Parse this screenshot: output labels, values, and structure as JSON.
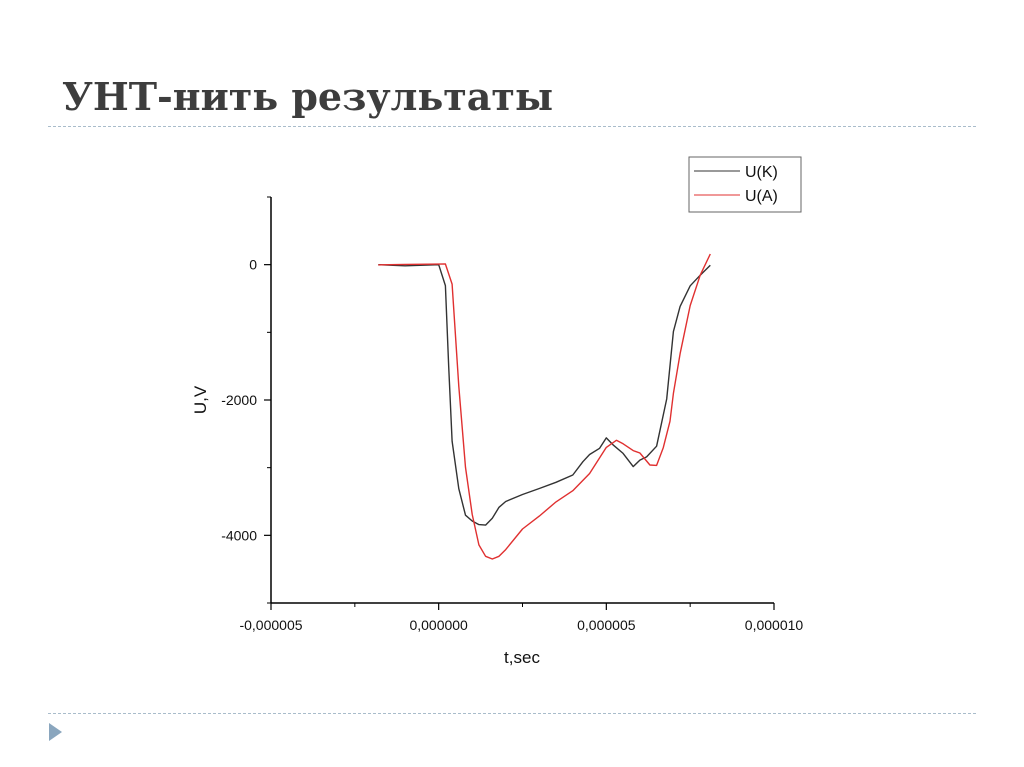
{
  "slide": {
    "title": "УНТ-нить результаты"
  },
  "icons": {
    "nav": "triangle-right-icon"
  },
  "chart_data": {
    "type": "line",
    "title": "",
    "xlabel": "t,sec",
    "ylabel": "U,V",
    "xlim": [
      -5e-06,
      1e-05
    ],
    "ylim": [
      -5000,
      1000
    ],
    "xticks": [
      -5e-06,
      0.0,
      5e-06,
      1e-05
    ],
    "xtick_labels": [
      "-0,000005",
      "0,000000",
      "0,000005",
      "0,000010"
    ],
    "yticks": [
      -4000,
      -2000,
      0
    ],
    "ytick_labels": [
      "-4000",
      "-2000",
      "0"
    ],
    "legend_position": "top-right",
    "grid": false,
    "series": [
      {
        "name": "U(K)",
        "color": "#333333",
        "x": [
          -1.8e-06,
          -1e-06,
          0.0,
          2e-07,
          3e-07,
          4e-07,
          6e-07,
          8e-07,
          1e-06,
          1.2e-06,
          1.4e-06,
          1.6e-06,
          1.8e-06,
          2e-06,
          2.5e-06,
          3e-06,
          3.5e-06,
          4e-06,
          4.3e-06,
          4.5e-06,
          4.8e-06,
          5e-06,
          5.2e-06,
          5.5e-06,
          5.8e-06,
          6e-06,
          6.2e-06,
          6.5e-06,
          6.8e-06,
          7e-06,
          7.2e-06,
          7.5e-06,
          7.8e-06,
          8.1e-06
        ],
        "y": [
          0,
          0,
          0,
          -300,
          -1500,
          -2600,
          -3300,
          -3700,
          -3800,
          -3850,
          -3850,
          -3750,
          -3600,
          -3500,
          -3400,
          -3300,
          -3200,
          -3100,
          -2900,
          -2800,
          -2700,
          -2550,
          -2650,
          -2800,
          -3000,
          -2900,
          -2850,
          -2700,
          -2000,
          -1000,
          -600,
          -300,
          -150,
          0
        ]
      },
      {
        "name": "U(A)",
        "color": "#e03030",
        "x": [
          -1.8e-06,
          -1e-06,
          0.0,
          2e-07,
          4e-07,
          6e-07,
          8e-07,
          1e-06,
          1.2e-06,
          1.4e-06,
          1.6e-06,
          1.8e-06,
          2e-06,
          2.5e-06,
          3e-06,
          3.5e-06,
          4e-06,
          4.5e-06,
          5e-06,
          5.3e-06,
          5.5e-06,
          5.8e-06,
          6e-06,
          6.3e-06,
          6.5e-06,
          6.7e-06,
          6.9e-06,
          7e-06,
          7.2e-06,
          7.5e-06,
          7.8e-06,
          8.1e-06
        ],
        "y": [
          0,
          0,
          0,
          0,
          -300,
          -1800,
          -3000,
          -3700,
          -4150,
          -4300,
          -4350,
          -4300,
          -4200,
          -3900,
          -3700,
          -3500,
          -3350,
          -3100,
          -2700,
          -2600,
          -2650,
          -2750,
          -2800,
          -2950,
          -2950,
          -2700,
          -2300,
          -1900,
          -1300,
          -600,
          -150,
          150
        ]
      }
    ]
  }
}
